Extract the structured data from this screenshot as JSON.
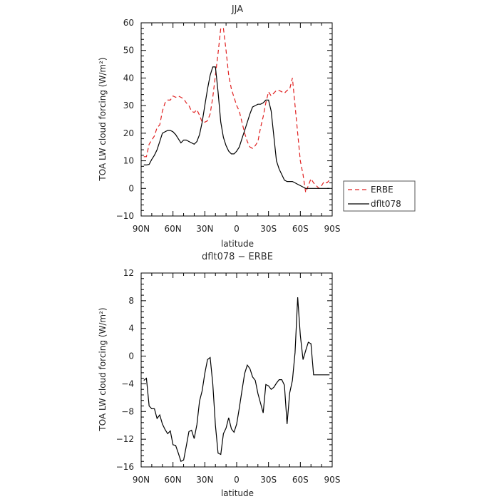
{
  "chart_data": [
    {
      "type": "line",
      "title": "JJA",
      "xlabel": "latitude",
      "ylabel": "TOA LW cloud forcing (W/m²)",
      "xlim": [
        -90,
        90
      ],
      "ylim": [
        -10,
        60
      ],
      "x_tick_values": [
        -90,
        -60,
        -30,
        0,
        30,
        60,
        90
      ],
      "x_tick_labels": [
        "90N",
        "60N",
        "30N",
        "0",
        "30S",
        "60S",
        "90S"
      ],
      "y_tick_values": [
        -10,
        0,
        10,
        20,
        30,
        40,
        50,
        60
      ],
      "y_tick_labels": [
        "−10",
        "0",
        "10",
        "20",
        "30",
        "40",
        "50",
        "60"
      ],
      "legend": "right, outside",
      "series": [
        {
          "name": "ERBE",
          "color": "#e02020",
          "dash": "dashed",
          "x": [
            -87.5,
            -85,
            -82.5,
            -80,
            -77.5,
            -75,
            -72.5,
            -70,
            -67.5,
            -65,
            -62.5,
            -60,
            -57.5,
            -55,
            -52.5,
            -50,
            -47.5,
            -45,
            -42.5,
            -40,
            -37.5,
            -35,
            -32.5,
            -30,
            -27.5,
            -25,
            -22.5,
            -20,
            -17.5,
            -15,
            -12.5,
            -10,
            -7.5,
            -5,
            -2.5,
            0,
            2.5,
            5,
            7.5,
            10,
            12.5,
            15,
            17.5,
            20,
            22.5,
            25,
            27.5,
            30,
            32.5,
            35,
            37.5,
            40,
            42.5,
            45,
            47.5,
            50,
            52.5,
            55,
            57.5,
            60,
            62.5,
            65,
            67.5,
            70,
            72.5,
            75,
            77.5,
            80,
            82.5,
            85,
            87.5
          ],
          "y": [
            11.5,
            11.5,
            16,
            17.5,
            19,
            22,
            23,
            28,
            31,
            32,
            32,
            33.5,
            33,
            33.5,
            33,
            32.5,
            31,
            30,
            28,
            27.5,
            28.5,
            26.5,
            24,
            24,
            24.5,
            27,
            33,
            41,
            49,
            58,
            58,
            50,
            41,
            36,
            33,
            30,
            28,
            24,
            20,
            17,
            15,
            14.5,
            15.5,
            17,
            22,
            26,
            31,
            35,
            33.5,
            34.5,
            35.5,
            35.5,
            35,
            34.5,
            35.5,
            36,
            40,
            30,
            20,
            10,
            5,
            -1.5,
            1,
            3.5,
            2,
            1,
            0,
            1,
            2.5,
            2,
            3
          ]
        },
        {
          "name": "dflt078",
          "color": "#000000",
          "dash": "solid",
          "x": [
            -87.5,
            -85,
            -82.5,
            -80,
            -77.5,
            -75,
            -72.5,
            -70,
            -67.5,
            -65,
            -62.5,
            -60,
            -57.5,
            -55,
            -52.5,
            -50,
            -47.5,
            -45,
            -42.5,
            -40,
            -37.5,
            -35,
            -32.5,
            -30,
            -27.5,
            -25,
            -22.5,
            -20,
            -17.5,
            -15,
            -12.5,
            -10,
            -7.5,
            -5,
            -2.5,
            0,
            2.5,
            5,
            7.5,
            10,
            12.5,
            15,
            17.5,
            20,
            22.5,
            25,
            27.5,
            30,
            32.5,
            35,
            37.5,
            40,
            42.5,
            45,
            47.5,
            50,
            52.5,
            55,
            57.5,
            60,
            62.5,
            65,
            67.5,
            70,
            72.5,
            75,
            77.5,
            80,
            82.5,
            85,
            87.5
          ],
          "y": [
            8.5,
            8.5,
            8.7,
            10.5,
            12,
            14,
            17,
            20,
            20.5,
            21,
            21,
            20.5,
            19.5,
            18,
            16.5,
            17.5,
            17.5,
            17,
            16.5,
            16,
            17,
            19.5,
            24,
            30,
            36,
            41,
            44,
            44,
            35,
            24,
            18.5,
            15.5,
            13.5,
            12.5,
            12.5,
            13.5,
            15,
            18,
            21,
            24,
            27,
            29.5,
            30,
            30.5,
            30.5,
            31,
            32,
            32,
            28,
            19,
            10,
            7,
            5,
            3,
            2.5,
            2.5,
            2.5,
            2,
            1.5,
            1,
            0.5,
            0,
            0,
            0,
            0,
            0,
            0,
            0,
            0,
            0,
            0
          ]
        }
      ]
    },
    {
      "type": "line",
      "title": "dflt078 − ERBE",
      "xlabel": "latitude",
      "ylabel": "TOA LW cloud forcing (W/m²)",
      "xlim": [
        -90,
        90
      ],
      "ylim": [
        -16,
        12
      ],
      "x_tick_values": [
        -90,
        -60,
        -30,
        0,
        30,
        60,
        90
      ],
      "x_tick_labels": [
        "90N",
        "60N",
        "30N",
        "0",
        "30S",
        "60S",
        "90S"
      ],
      "y_tick_values": [
        -16,
        -12,
        -8,
        -4,
        0,
        4,
        8,
        12
      ],
      "y_tick_labels": [
        "−16",
        "−12",
        "−8",
        "−4",
        "0",
        "4",
        "8",
        "12"
      ],
      "series": [
        {
          "color": "#000000",
          "dash": "solid",
          "x": [
            -87.5,
            -85,
            -82.5,
            -80,
            -77.5,
            -75,
            -72.5,
            -70,
            -67.5,
            -65,
            -62.5,
            -60,
            -57.5,
            -55,
            -52.5,
            -50,
            -47.5,
            -45,
            -42.5,
            -40,
            -37.5,
            -35,
            -32.5,
            -30,
            -27.5,
            -25,
            -22.5,
            -20,
            -17.5,
            -15,
            -12.5,
            -10,
            -7.5,
            -5,
            -2.5,
            0,
            2.5,
            5,
            7.5,
            10,
            12.5,
            15,
            17.5,
            20,
            22.5,
            25,
            27.5,
            30,
            32.5,
            35,
            37.5,
            40,
            42.5,
            45,
            47.5,
            50,
            52.5,
            55,
            57.5,
            60,
            62.5,
            65,
            67.5,
            70,
            72.5,
            75,
            77.5,
            80,
            82.5,
            85,
            87.5
          ],
          "y": [
            -3.5,
            -3.2,
            -7.2,
            -7.6,
            -7.6,
            -9,
            -8.5,
            -9.8,
            -10.6,
            -11.2,
            -10.8,
            -12.8,
            -12.9,
            -14,
            -15.2,
            -15,
            -13,
            -10.9,
            -10.7,
            -11.9,
            -9.9,
            -6.5,
            -5,
            -2.5,
            -0.5,
            -0.2,
            -4,
            -10,
            -14,
            -14.2,
            -11.2,
            -10.4,
            -8.9,
            -10.5,
            -11,
            -9.8,
            -7.5,
            -5,
            -2.5,
            -1.3,
            -1.8,
            -3,
            -3.5,
            -5.4,
            -6.8,
            -8.2,
            -4.1,
            -4.3,
            -4.8,
            -4.5,
            -3.9,
            -3.4,
            -3.4,
            -4.2,
            -9.8,
            -5.3,
            -3.5,
            0.5,
            8.5,
            3,
            -0.5,
            0.8,
            2,
            1.8,
            -2.7,
            -2.7,
            -2.7,
            -2.7,
            -2.7,
            -2.7,
            -2.7
          ]
        }
      ]
    }
  ]
}
